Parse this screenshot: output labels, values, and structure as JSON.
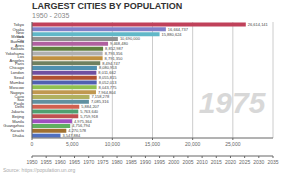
{
  "chart_data": {
    "type": "bar",
    "orientation": "horizontal",
    "title": "LARGEST CITIES BY POPULATION",
    "subtitle": "1950 - 2035",
    "annotations": [
      "1975"
    ],
    "source": "Source: https://population.un.org",
    "categories": [
      "Tokyo",
      "Osaka",
      "New York",
      "Mexico City",
      "Buenos Aires",
      "Kolkata",
      "Yokohama",
      "Los Angeles",
      "Paris",
      "Chicago",
      "London",
      "Seoul",
      "Mumbai",
      "Moscow",
      "Nagoya",
      "Cairo",
      "Sao Paulo",
      "Delhi",
      "Jakarta",
      "Beijing",
      "Manila",
      "Guangzhou",
      "Karachi",
      "Dhaka"
    ],
    "values": [
      26614141,
      16664737,
      15880624,
      10690000,
      9468480,
      8852987,
      8793356,
      8791350,
      8494747,
      8080953,
      8011662,
      8055815,
      8052013,
      8043775,
      7964804,
      7158278,
      7085316,
      5884207,
      5763640,
      5759918,
      4975364,
      4756794,
      4270578,
      3547884
    ],
    "value_labels": [
      "26,614,141",
      "16,664,737",
      "15,880,624",
      "10,690,000",
      "9,468,480",
      "8,852,987",
      "8,793,356",
      "8,791,350",
      "8,494,747",
      "8,080,953",
      "8,011,662",
      "8,055,815",
      "8,052,013",
      "8,043,775",
      "7,964,804",
      "7,158,278",
      "7,085,316",
      "5,884,207",
      "5,763,640",
      "5,759,918",
      "4,975,364",
      "4,756,794",
      "4,270,578",
      "3,547,884"
    ],
    "data_labels": true,
    "colors": [
      "#c0415a",
      "#8080c8",
      "#60b8c8",
      "#909090",
      "#b060a0",
      "#608040",
      "#b0b0b0",
      "#c09040",
      "#708060",
      "#5090b0",
      "#7050a0",
      "#b05030",
      "#5060b0",
      "#90c050",
      "#c09850",
      "#b0b060",
      "#6090a0",
      "#d06050",
      "#50a070",
      "#c05050",
      "#a050c0",
      "#60b060",
      "#a07030",
      "#5070c0"
    ],
    "xlim": [
      0,
      30000000
    ],
    "xticks": [
      0,
      {
        "value": 5000000,
        "label": "5,000"
      },
      {
        "value": 10000000,
        "label": "10,000"
      },
      {
        "value": 15000000,
        "label": "15,000"
      },
      {
        "value": 20000000,
        "label": "20,000"
      },
      {
        "value": 25000000,
        "label": "25,000"
      }
    ],
    "grid": true,
    "timeline": {
      "xlim": [
        1950,
        2035
      ],
      "xticks": [
        1950,
        1955,
        1960,
        1965,
        1970,
        1975,
        1980,
        1985,
        1990,
        1995,
        2000,
        2005,
        2010,
        2015,
        2020,
        2025,
        2030,
        2035
      ],
      "current": 1975
    }
  }
}
